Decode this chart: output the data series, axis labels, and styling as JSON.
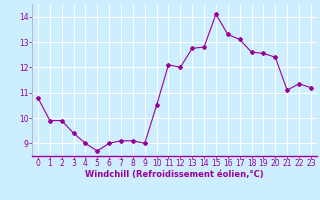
{
  "x": [
    0,
    1,
    2,
    3,
    4,
    5,
    6,
    7,
    8,
    9,
    10,
    11,
    12,
    13,
    14,
    15,
    16,
    17,
    18,
    19,
    20,
    21,
    22,
    23
  ],
  "y": [
    10.8,
    9.9,
    9.9,
    9.4,
    9.0,
    8.7,
    9.0,
    9.1,
    9.1,
    9.0,
    10.5,
    12.1,
    12.0,
    12.75,
    12.8,
    14.1,
    13.3,
    13.1,
    12.6,
    12.55,
    12.4,
    11.1,
    11.35,
    11.2
  ],
  "line_color": "#990099",
  "marker": "D",
  "marker_size": 2.0,
  "bg_color": "#cceeff",
  "grid_color": "#ffffff",
  "xlabel": "Windchill (Refroidissement éolien,°C)",
  "xlabel_color": "#990099",
  "tick_color": "#990099",
  "label_color": "#990099",
  "ylim": [
    8.5,
    14.5
  ],
  "xlim": [
    -0.5,
    23.5
  ],
  "yticks": [
    9,
    10,
    11,
    12,
    13,
    14
  ],
  "xticks": [
    0,
    1,
    2,
    3,
    4,
    5,
    6,
    7,
    8,
    9,
    10,
    11,
    12,
    13,
    14,
    15,
    16,
    17,
    18,
    19,
    20,
    21,
    22,
    23
  ],
  "tick_fontsize": 5.5,
  "xlabel_fontsize": 6.0
}
